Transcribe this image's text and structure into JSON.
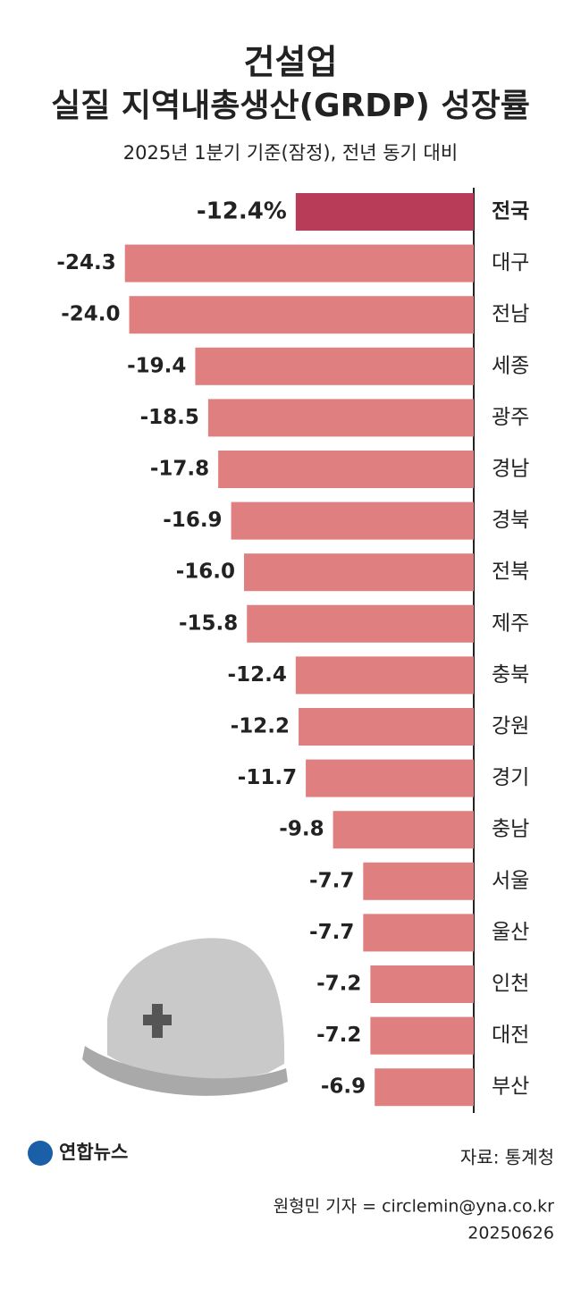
{
  "chart_data": {
    "type": "bar",
    "orientation": "horizontal",
    "title": [
      "건설업",
      "실질 지역내총생산(GRDP) 성장률"
    ],
    "subtitle": "2025년 1분기 기준(잠정), 전년 동기 대비",
    "categories": [
      "전국",
      "대구",
      "전남",
      "세종",
      "광주",
      "경남",
      "경북",
      "전북",
      "제주",
      "충북",
      "강원",
      "경기",
      "충남",
      "서울",
      "울산",
      "인천",
      "대전",
      "부산"
    ],
    "values": [
      -12.4,
      -24.3,
      -24.0,
      -19.4,
      -18.5,
      -17.8,
      -16.9,
      -16.0,
      -15.8,
      -12.4,
      -12.2,
      -11.7,
      -9.8,
      -7.7,
      -7.7,
      -7.2,
      -7.2,
      -6.9
    ],
    "value_labels": [
      "-12.4%",
      "-24.3",
      "-24.0",
      "-19.4",
      "-18.5",
      "-17.8",
      "-16.9",
      "-16.0",
      "-15.8",
      "-12.4",
      "-12.2",
      "-11.7",
      "-9.8",
      "-7.7",
      "-7.7",
      "-7.2",
      "-7.2",
      "-6.9"
    ],
    "colors": [
      "#b83b57",
      "#e07f7f",
      "#e07f7f",
      "#e07f7f",
      "#e07f7f",
      "#e07f7f",
      "#e07f7f",
      "#e07f7f",
      "#e07f7f",
      "#e07f7f",
      "#e07f7f",
      "#e07f7f",
      "#e07f7f",
      "#e07f7f",
      "#e07f7f",
      "#e07f7f",
      "#e07f7f",
      "#e07f7f"
    ],
    "xlim": [
      -33,
      0
    ]
  },
  "footer": {
    "logo": "연합뉴스",
    "source": "자료: 통계청",
    "byline": "원형민 기자 = circlemin@yna.co.kr",
    "date": "20250626"
  }
}
